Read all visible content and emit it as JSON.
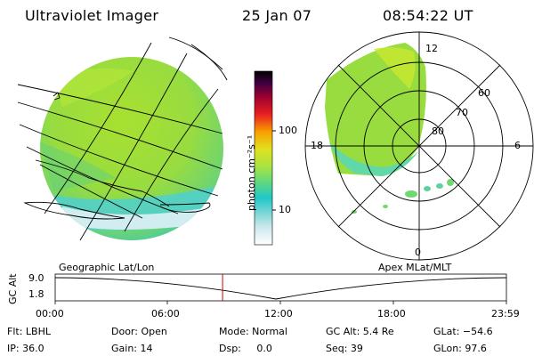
{
  "header": {
    "title": "Ultraviolet Imager",
    "date": "25 Jan 07",
    "time": "08:54:22 UT"
  },
  "colorbar": {
    "unit_label": "photon cm⁻²s⁻¹",
    "tick_labels": [
      "100",
      "10"
    ]
  },
  "polar_plot": {
    "mlt_labels": {
      "top": "12",
      "left": "18",
      "right": "6",
      "bottom": "0"
    },
    "lat_labels": [
      "60",
      "70",
      "80"
    ]
  },
  "timeline": {
    "axis_title": "GC Alt",
    "y_labels": [
      "9.0",
      "1.8"
    ],
    "left_caption": "Geographic Lat/Lon",
    "right_caption": "Apex  MLat/MLT",
    "x_labels": [
      "00:00",
      "06:00",
      "12:00",
      "18:00",
      "23:59"
    ],
    "current_time_fraction": 0.371
  },
  "info": {
    "row1": {
      "filter": "Flt: LBHL",
      "door": "Door: Open",
      "mode": "Mode: Normal",
      "gc_alt": "GC Alt: 5.4 Re",
      "glat": "GLat: −54.6"
    },
    "row2": {
      "ip": "IP: 36.0",
      "gain": "Gain: 14",
      "dsp": "Dsp:     0.0",
      "seq": "Seq: 39",
      "glon": "GLon: 97.6"
    }
  },
  "colors": {
    "colorbar_stops": [
      "#ffffff",
      "#cfe8ee",
      "#7fd6d6",
      "#20c8c8",
      "#60d880",
      "#b8e840",
      "#e8e020",
      "#f8a000",
      "#e82020",
      "#a00030",
      "#400040",
      "#000000"
    ],
    "marker_red": "#cc0000"
  }
}
